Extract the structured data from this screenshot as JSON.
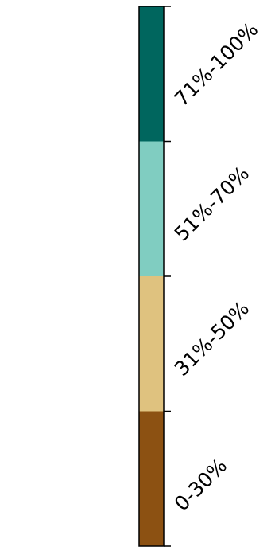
{
  "chart_data": {
    "type": "colorbar",
    "orientation": "vertical",
    "categories": [
      "0-30%",
      "31%-50%",
      "51%-70%",
      "71%-100%"
    ],
    "colors": [
      "#8c5112",
      "#dfc27f",
      "#80cdc1",
      "#00665e"
    ],
    "title": "",
    "xlabel": "",
    "ylabel": ""
  }
}
